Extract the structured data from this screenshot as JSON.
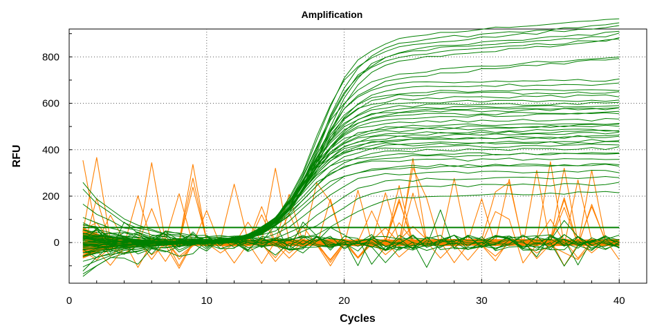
{
  "chart_data": {
    "type": "line",
    "title": "Amplification",
    "xlabel": "Cycles",
    "ylabel": "RFU",
    "xlim": [
      0,
      42
    ],
    "ylim": [
      -175,
      920
    ],
    "x_ticks": [
      0,
      10,
      20,
      30,
      40
    ],
    "y_ticks": [
      0,
      200,
      400,
      600,
      800
    ],
    "grid": true,
    "legend": "none",
    "colors": {
      "amplified": "#008000",
      "baseline": "#ff8000",
      "threshold": "#008000"
    },
    "threshold": 65,
    "x": [
      1,
      2,
      3,
      4,
      5,
      6,
      7,
      8,
      9,
      10,
      11,
      12,
      13,
      14,
      15,
      16,
      17,
      18,
      19,
      20,
      21,
      22,
      23,
      24,
      25,
      26,
      27,
      28,
      29,
      30,
      31,
      32,
      33,
      34,
      35,
      36,
      37,
      38,
      39,
      40
    ],
    "amplified_series": {
      "description_of_values": "sigmoid amplification curves: plateau RFU, midpoint cycle, initial baseline RFU",
      "plateaus": [
        880,
        860,
        845,
        830,
        815,
        800,
        785,
        720,
        705,
        690,
        670,
        650,
        640,
        620,
        605,
        590,
        580,
        570,
        560,
        550,
        540,
        520,
        505,
        495,
        485,
        475,
        465,
        455,
        445,
        440,
        430,
        420,
        410,
        395,
        380,
        370,
        355,
        330,
        320,
        300,
        270,
        240,
        200
      ],
      "midpoints": [
        18.0,
        18.2,
        17.8,
        18.4,
        18.1,
        17.9,
        18.3,
        17.6,
        17.9,
        17.7,
        18.0,
        17.5,
        17.8,
        17.4,
        17.6,
        17.3,
        17.7,
        17.2,
        17.5,
        17.1,
        17.4,
        17.0,
        17.3,
        16.9,
        17.2,
        16.8,
        17.1,
        16.7,
        17.0,
        16.6,
        16.9,
        16.5,
        16.8,
        17.2,
        16.4,
        17.0,
        16.6,
        17.4,
        16.9,
        17.8,
        18.4,
        19.2,
        20.0
      ],
      "initial_values": [
        260,
        230,
        170,
        110,
        60,
        20,
        -10,
        -60,
        -100,
        -130,
        50,
        10,
        -20,
        80,
        -40,
        0,
        30,
        -80,
        5,
        40,
        -30,
        15,
        -50,
        25,
        -15,
        35,
        -25,
        10,
        -5,
        20,
        -45,
        45,
        -10,
        0,
        30,
        -35,
        15,
        5,
        -20,
        25,
        -60,
        10,
        0
      ]
    },
    "flat_series_count": 12,
    "baseline_series_count": 90
  }
}
